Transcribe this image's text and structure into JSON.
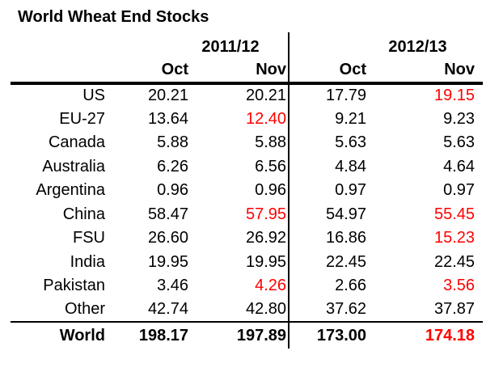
{
  "title": "World Wheat End Stocks",
  "chart_data": {
    "type": "table",
    "title": "World Wheat End Stocks",
    "year_groups": [
      "2011/12",
      "2012/13"
    ],
    "columns": [
      "Oct",
      "Nov",
      "Oct",
      "Nov"
    ],
    "rows": [
      {
        "label": "US",
        "values": [
          "20.21",
          "20.21",
          "17.79",
          "19.15"
        ],
        "red_flags": [
          false,
          false,
          false,
          true
        ]
      },
      {
        "label": "EU-27",
        "values": [
          "13.64",
          "12.40",
          "9.21",
          "9.23"
        ],
        "red_flags": [
          false,
          true,
          false,
          false
        ]
      },
      {
        "label": "Canada",
        "values": [
          "5.88",
          "5.88",
          "5.63",
          "5.63"
        ],
        "red_flags": [
          false,
          false,
          false,
          false
        ]
      },
      {
        "label": "Australia",
        "values": [
          "6.26",
          "6.56",
          "4.84",
          "4.64"
        ],
        "red_flags": [
          false,
          false,
          false,
          false
        ]
      },
      {
        "label": "Argentina",
        "values": [
          "0.96",
          "0.96",
          "0.97",
          "0.97"
        ],
        "red_flags": [
          false,
          false,
          false,
          false
        ]
      },
      {
        "label": "China",
        "values": [
          "58.47",
          "57.95",
          "54.97",
          "55.45"
        ],
        "red_flags": [
          false,
          true,
          false,
          true
        ]
      },
      {
        "label": "FSU",
        "values": [
          "26.60",
          "26.92",
          "16.86",
          "15.23"
        ],
        "red_flags": [
          false,
          false,
          false,
          true
        ]
      },
      {
        "label": "India",
        "values": [
          "19.95",
          "19.95",
          "22.45",
          "22.45"
        ],
        "red_flags": [
          false,
          false,
          false,
          false
        ]
      },
      {
        "label": "Pakistan",
        "values": [
          "3.46",
          "4.26",
          "2.66",
          "3.56"
        ],
        "red_flags": [
          false,
          true,
          false,
          true
        ]
      },
      {
        "label": "Other",
        "values": [
          "42.74",
          "42.80",
          "37.62",
          "37.87"
        ],
        "red_flags": [
          false,
          false,
          false,
          false
        ]
      }
    ],
    "total_row": {
      "label": "World",
      "values": [
        "198.17",
        "197.89",
        "173.00",
        "174.18"
      ],
      "red_flags": [
        false,
        false,
        false,
        true
      ]
    },
    "colors": {
      "highlight_red": "#FF0000",
      "text": "#000000",
      "background": "#FFFFFF"
    }
  }
}
